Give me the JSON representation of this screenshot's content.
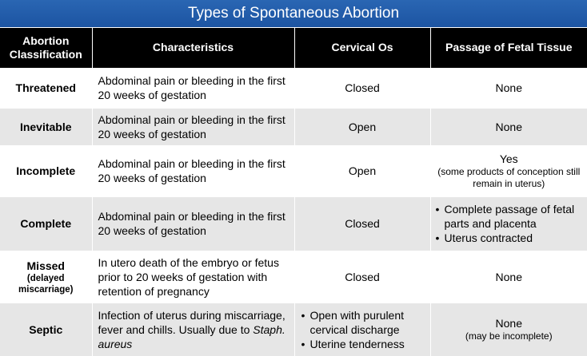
{
  "title": "Types of Spontaneous Abortion",
  "headers": {
    "classification_line1": "Abortion",
    "classification_line2": "Classification",
    "characteristics": "Characteristics",
    "cervical_os": "Cervical Os",
    "passage": "Passage of Fetal Tissue"
  },
  "rows": [
    {
      "classification": "Threatened",
      "characteristics": "Abdominal pain or bleeding in the first 20 weeks of gestation",
      "cervical_os": "Closed",
      "passage": "None"
    },
    {
      "classification": "Inevitable",
      "characteristics": "Abdominal pain or bleeding in the first 20 weeks of gestation",
      "cervical_os": "Open",
      "passage": "None"
    },
    {
      "classification": "Incomplete",
      "characteristics": "Abdominal pain or bleeding in the first 20 weeks of gestation",
      "cervical_os": "Open",
      "passage": "Yes",
      "passage_note": "(some products of conception still remain in uterus)"
    },
    {
      "classification": "Complete",
      "characteristics": "Abdominal pain or bleeding in the first 20 weeks of gestation",
      "cervical_os": "Closed",
      "passage_items": [
        "Complete passage of fetal parts and placenta",
        "Uterus contracted"
      ]
    },
    {
      "classification": "Missed",
      "classification_note": "(delayed miscarriage)",
      "characteristics": "In utero death of the embryo or fetus prior to 20 weeks of gestation with retention of pregnancy",
      "cervical_os": "Closed",
      "passage": "None"
    },
    {
      "classification": "Septic",
      "characteristics_pre": "Infection of uterus during miscarriage, fever and chills. Usually due to ",
      "characteristics_em": "Staph. aureus",
      "cervical_os_items": [
        "Open with purulent cervical discharge",
        "Uterine tenderness"
      ],
      "passage": "None",
      "passage_note": "(may be incomplete)"
    }
  ]
}
